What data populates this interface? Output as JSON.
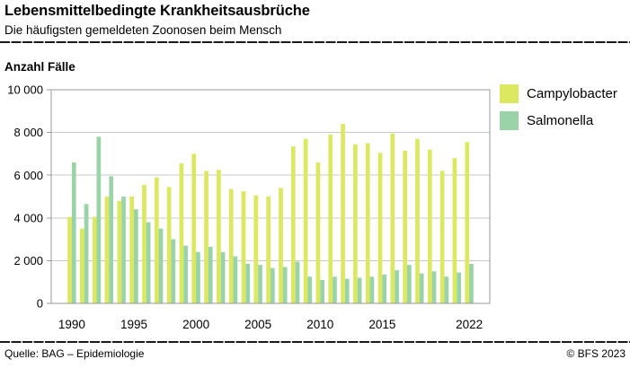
{
  "header": {
    "title": "Lebensmittelbedingte Krankheitsausbrüche",
    "subtitle": "Die häufigsten gemeldeten Zoonosen beim Mensch"
  },
  "chart": {
    "axis_title": "Anzahl Fälle"
  },
  "footer": {
    "source": "Quelle: BAG – Epidemiologie",
    "copyright": "© BFS 2023"
  },
  "colors": {
    "campylobacter": "#dce85f",
    "salmonella": "#99d3a7",
    "gridline": "#c8c8c8",
    "frame": "#999999",
    "text": "#000000"
  },
  "chart_data": {
    "type": "bar",
    "title": "Lebensmittelbedingte Krankheitsausbrüche",
    "subtitle": "Die häufigsten gemeldeten Zoonosen beim Mensch",
    "xlabel": "",
    "ylabel": "Anzahl Fälle",
    "ylim": [
      0,
      10000
    ],
    "ytick_interval": 2000,
    "ytick_labels": [
      "0",
      "2 000",
      "4 000",
      "6 000",
      "8 000",
      "10 000"
    ],
    "xtick_years": [
      1990,
      1995,
      2000,
      2005,
      2010,
      2015,
      2022
    ],
    "grid": true,
    "legend_position": "top-right",
    "categories": [
      1990,
      1991,
      1992,
      1993,
      1994,
      1995,
      1996,
      1997,
      1998,
      1999,
      2000,
      2001,
      2002,
      2003,
      2004,
      2005,
      2006,
      2007,
      2008,
      2009,
      2010,
      2011,
      2012,
      2013,
      2014,
      2015,
      2016,
      2017,
      2018,
      2019,
      2020,
      2021,
      2022
    ],
    "series": [
      {
        "name": "Campylobacter",
        "color": "#dce85f",
        "values": [
          4050,
          3500,
          4050,
          5000,
          4800,
          5000,
          5550,
          5900,
          5450,
          6550,
          7000,
          6200,
          6250,
          5350,
          5250,
          5050,
          5000,
          5400,
          7350,
          7700,
          6600,
          7900,
          8400,
          7450,
          7500,
          7050,
          7950,
          7150,
          7700,
          7200,
          6200,
          6800,
          7550
        ]
      },
      {
        "name": "Salmonella",
        "color": "#99d3a7",
        "values": [
          6600,
          4650,
          7800,
          5950,
          5000,
          4400,
          3800,
          3500,
          3000,
          2700,
          2400,
          2650,
          2400,
          2200,
          1850,
          1800,
          1650,
          1700,
          1950,
          1250,
          1100,
          1250,
          1150,
          1200,
          1250,
          1350,
          1550,
          1800,
          1400,
          1500,
          1250,
          1450,
          1850
        ]
      }
    ]
  }
}
